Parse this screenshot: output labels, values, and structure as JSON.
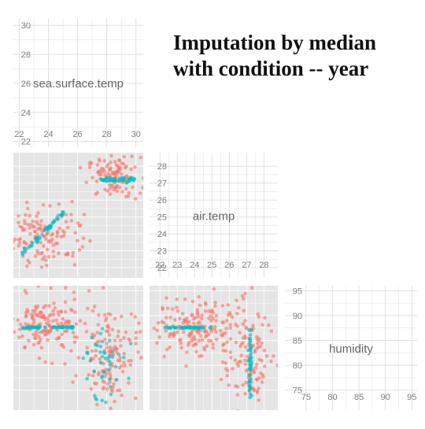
{
  "title": "Imputation by median with condition -- year",
  "colors": {
    "observed": "#F8766D",
    "imputed": "#00BFC4",
    "panel_bg": "#E5E5E5",
    "grid_on_gray": "#FFFFFF",
    "grid_on_white": "#DDDDDD",
    "tick_text": "#7F7F7F",
    "diag_label": "#666666"
  },
  "chart_data": {
    "type": "scatter",
    "layout": "scatterplot-matrix",
    "variables": [
      "sea.surface.temp",
      "air.temp",
      "humidity"
    ],
    "diagonal_labels": [
      "sea.surface.temp",
      "air.temp",
      "humidity"
    ],
    "axes": {
      "sea.surface.temp": {
        "range": [
          21.6,
          30.5
        ],
        "ticks": [
          22,
          24,
          26,
          28,
          30
        ]
      },
      "air.temp": {
        "range": [
          21.4,
          28.8
        ],
        "ticks": [
          22,
          23,
          24,
          25,
          26,
          27,
          28
        ]
      },
      "humidity": {
        "range": [
          71,
          96
        ],
        "ticks": [
          75,
          80,
          85,
          90,
          95
        ]
      }
    },
    "grid": true,
    "series": [
      {
        "status": "observed",
        "clusters": {
          "air_vs_sst": [
            {
              "center": [
                28.5,
                27.35
              ],
              "spread": [
                0.9,
                0.6
              ],
              "n": 110
            },
            {
              "center": [
                23.8,
                24.0
              ],
              "spread": [
                1.3,
                0.95
              ],
              "n": 130
            }
          ],
          "hum_vs_sst": [
            {
              "center": [
                23.8,
                87.8
              ],
              "spread": [
                1.2,
                3.0
              ],
              "n": 150
            },
            {
              "center": [
                28.2,
                82.5
              ],
              "spread": [
                0.95,
                5.0
              ],
              "n": 130
            }
          ],
          "hum_vs_air": [
            {
              "center": [
                24.0,
                87.8
              ],
              "spread": [
                1.1,
                3.0
              ],
              "n": 150
            },
            {
              "center": [
                27.1,
                82.5
              ],
              "spread": [
                0.8,
                5.0
              ],
              "n": 130
            }
          ]
        }
      },
      {
        "status": "imputed",
        "imputed_values": {
          "air.temp": [
            24.0,
            27.2
          ],
          "humidity": [
            87.6,
            87.2
          ]
        },
        "clusters": {
          "air_vs_sst": [
            {
              "x_range": [
                27.5,
                30.0
              ],
              "y": 27.2,
              "n": 45
            },
            {
              "x_range": [
                22.2,
                25.2
              ],
              "y": 24.1,
              "n": 45,
              "slope": 0.85
            }
          ],
          "hum_vs_sst": [
            {
              "x_range": [
                22.2,
                25.8
              ],
              "y": 87.6,
              "n": 55
            },
            {
              "center": [
                27.8,
                81.0
              ],
              "spread": [
                0.8,
                3.8
              ],
              "n": 45
            }
          ],
          "hum_vs_air": [
            {
              "x_range": [
                22.2,
                25.0
              ],
              "y": 87.6,
              "n": 45
            },
            {
              "x": 27.2,
              "y_range": [
                73.5,
                87.5
              ],
              "n": 45
            }
          ]
        }
      }
    ]
  }
}
